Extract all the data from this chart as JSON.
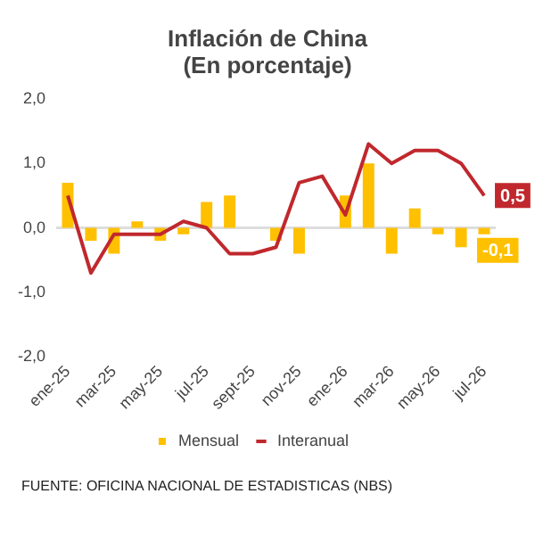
{
  "chart_data": {
    "type": "bar",
    "title": "Inflación de China",
    "subtitle": "(En porcentaje)",
    "categories": [
      "ene-25",
      null,
      "mar-25",
      null,
      "may-25",
      null,
      "jul-25",
      null,
      "sept-25",
      null,
      "nov-25",
      null,
      "ene-26",
      null,
      "mar-26",
      null,
      "may-26",
      null,
      "jul-26"
    ],
    "series": [
      {
        "name": "Mensual",
        "color": "#ffc000",
        "values": [
          0.7,
          -0.2,
          -0.4,
          0.1,
          -0.2,
          -0.1,
          0.4,
          0.5,
          0,
          -0.2,
          -0.4,
          0,
          0.5,
          1.0,
          -0.4,
          0.3,
          -0.1,
          -0.3,
          -0.1
        ],
        "value_labels": [
          null,
          null,
          null,
          null,
          null,
          null,
          null,
          null,
          null,
          null,
          null,
          null,
          null,
          null,
          null,
          null,
          null,
          null,
          "-0,1"
        ]
      },
      {
        "name": "Interanual",
        "type": "line",
        "color": "#c0282d",
        "values": [
          0.5,
          -0.7,
          -0.1,
          -0.1,
          -0.1,
          0.1,
          0.0,
          -0.4,
          -0.4,
          -0.3,
          0.7,
          0.8,
          0.2,
          1.3,
          1.0,
          1.2,
          1.2,
          1.0,
          0.5
        ],
        "value_labels": [
          null,
          null,
          null,
          null,
          null,
          null,
          null,
          null,
          null,
          null,
          null,
          null,
          null,
          null,
          null,
          null,
          null,
          null,
          "0,5"
        ]
      }
    ],
    "ylim": [
      -2,
      2
    ],
    "yticks": [
      {
        "value": -2,
        "label": "-2,0"
      },
      {
        "value": -1,
        "label": "-1,0"
      },
      {
        "value": 0,
        "label": "0,0"
      },
      {
        "value": 1,
        "label": "1,0"
      },
      {
        "value": 2,
        "label": "2,0"
      }
    ],
    "ref_lines": [
      {
        "axis": "y",
        "value": 0,
        "color": "#dddddd"
      }
    ],
    "legend": "bottom",
    "marker": "none",
    "annotations": [
      "FUENTE: OFICINA NACIONAL DE ESTADISTICAS (NBS)"
    ]
  }
}
